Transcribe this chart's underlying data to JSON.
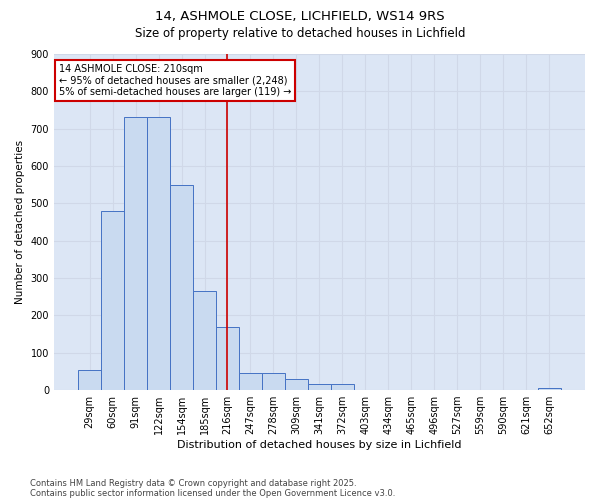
{
  "title1": "14, ASHMOLE CLOSE, LICHFIELD, WS14 9RS",
  "title2": "Size of property relative to detached houses in Lichfield",
  "xlabel": "Distribution of detached houses by size in Lichfield",
  "ylabel": "Number of detached properties",
  "categories": [
    "29sqm",
    "60sqm",
    "91sqm",
    "122sqm",
    "154sqm",
    "185sqm",
    "216sqm",
    "247sqm",
    "278sqm",
    "309sqm",
    "341sqm",
    "372sqm",
    "403sqm",
    "434sqm",
    "465sqm",
    "496sqm",
    "527sqm",
    "559sqm",
    "590sqm",
    "621sqm",
    "652sqm"
  ],
  "values": [
    55,
    480,
    730,
    730,
    550,
    265,
    170,
    45,
    45,
    30,
    15,
    15,
    0,
    0,
    0,
    0,
    0,
    0,
    0,
    0,
    5
  ],
  "bar_color": "#c9daf0",
  "bar_edge_color": "#4472c4",
  "grid_color": "#d0d8e8",
  "vline_color": "#cc0000",
  "vline_x_index": 6,
  "annotation_text": "14 ASHMOLE CLOSE: 210sqm\n← 95% of detached houses are smaller (2,248)\n5% of semi-detached houses are larger (119) →",
  "annotation_box_color": "#ffffff",
  "annotation_box_edge": "#cc0000",
  "ylim": [
    0,
    900
  ],
  "yticks": [
    0,
    100,
    200,
    300,
    400,
    500,
    600,
    700,
    800,
    900
  ],
  "footer1": "Contains HM Land Registry data © Crown copyright and database right 2025.",
  "footer2": "Contains public sector information licensed under the Open Government Licence v3.0.",
  "bg_color": "#ffffff",
  "plot_bg_color": "#dce6f5"
}
